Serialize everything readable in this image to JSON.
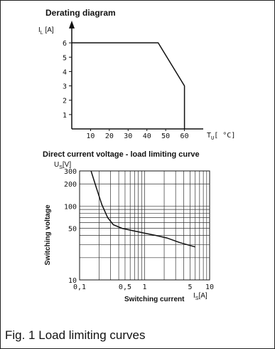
{
  "chart_data": [
    {
      "type": "line",
      "title": "Derating diagram",
      "ylabel": {
        "sym": "I",
        "sub": "L",
        "unit": " [A]"
      },
      "xlabel": {
        "sym": "T",
        "sub": "U",
        "unit": "[ °C]"
      },
      "x_ticks": [
        "10",
        "20",
        "30",
        "40",
        "50",
        "60"
      ],
      "y_ticks": [
        "1",
        "2",
        "3",
        "4",
        "5",
        "6"
      ],
      "xlim": [
        0,
        70
      ],
      "ylim": [
        0,
        7
      ],
      "series": [
        {
          "x": [
            0,
            46,
            60,
            60
          ],
          "y": [
            6,
            6,
            3,
            0
          ]
        }
      ]
    },
    {
      "type": "line",
      "title": "Direct current voltage - load limiting curve",
      "ylabel": "Switching voltage",
      "yunit": {
        "sym": "U",
        "sub": "S",
        "unit": "[V]"
      },
      "xlabel": "Switching current",
      "xunit": {
        "sym": "I",
        "sub": "S",
        "unit": "[A]"
      },
      "x_scale": "log",
      "y_scale": "log",
      "x_ticks": [
        {
          "value": 0.1,
          "label": "0,1"
        },
        {
          "value": 0.5,
          "label": "0,5"
        },
        {
          "value": 1,
          "label": "1"
        },
        {
          "value": 5,
          "label": "5"
        },
        {
          "value": 10,
          "label": "10"
        }
      ],
      "y_ticks": [
        {
          "value": 10,
          "label": "10"
        },
        {
          "value": 50,
          "label": "50"
        },
        {
          "value": 100,
          "label": "100"
        },
        {
          "value": 200,
          "label": "200"
        },
        {
          "value": 300,
          "label": "300"
        }
      ],
      "xlim": [
        0.1,
        10
      ],
      "ylim": [
        10,
        300
      ],
      "grid": true,
      "series": [
        {
          "x": [
            0.15,
            0.18,
            0.22,
            0.27,
            0.33,
            0.45,
            0.7,
            1.0,
            1.5,
            2.2,
            3.5,
            6.0
          ],
          "y": [
            300,
            180,
            105,
            70,
            56,
            50,
            46,
            43,
            40,
            37,
            32,
            28
          ]
        }
      ]
    }
  ],
  "caption": "Fig. 1 Load limiting curves"
}
